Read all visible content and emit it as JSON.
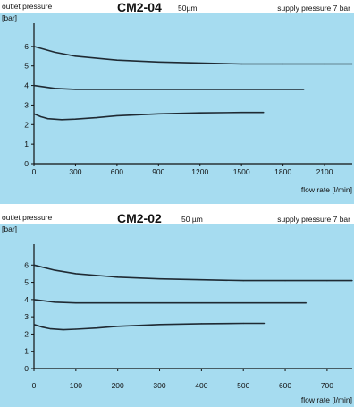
{
  "chart_data": [
    {
      "type": "line",
      "title": "CM2-04",
      "subtitle": "50µm",
      "ylabel": "outlet pressure",
      "yunit": "[bar]",
      "supply_text": "supply pressure 7 bar",
      "xlabel": "flow rate [l/min]",
      "x_ticks": [
        "0",
        "300",
        "600",
        "900",
        "1200",
        "1500",
        "1800",
        "2100"
      ],
      "y_ticks": [
        "0",
        "1",
        "2",
        "3",
        "4",
        "5",
        "6"
      ],
      "xlim": [
        0,
        2300
      ],
      "ylim": [
        0,
        7
      ],
      "grid": false,
      "background": "#a6dcf0",
      "line_color": "#1f2a33",
      "series": [
        {
          "x": [
            0,
            150,
            300,
            600,
            900,
            1200,
            1500,
            1800,
            2100,
            2300
          ],
          "y": [
            6.0,
            5.7,
            5.5,
            5.3,
            5.2,
            5.15,
            5.1,
            5.1,
            5.1,
            5.1
          ]
        },
        {
          "x": [
            0,
            150,
            300,
            600,
            900,
            1200,
            1500,
            1800,
            1950
          ],
          "y": [
            4.0,
            3.85,
            3.8,
            3.8,
            3.8,
            3.8,
            3.8,
            3.8,
            3.8
          ]
        },
        {
          "x": [
            0,
            50,
            100,
            200,
            300,
            450,
            600,
            900,
            1200,
            1500,
            1660
          ],
          "y": [
            2.55,
            2.4,
            2.3,
            2.25,
            2.28,
            2.35,
            2.45,
            2.55,
            2.6,
            2.62,
            2.62
          ]
        }
      ]
    },
    {
      "type": "line",
      "title": "CM2-02",
      "subtitle": "50 µm",
      "ylabel": "outlet pressure",
      "yunit": "[bar]",
      "supply_text": "supply pressure 7 bar",
      "xlabel": "flow rate [l/min]",
      "x_ticks": [
        "0",
        "100",
        "200",
        "300",
        "400",
        "500",
        "600",
        "700"
      ],
      "y_ticks": [
        "0",
        "1",
        "2",
        "3",
        "4",
        "5",
        "6"
      ],
      "xlim": [
        0,
        760
      ],
      "ylim": [
        0,
        7
      ],
      "grid": false,
      "background": "#a6dcf0",
      "line_color": "#1f2a33",
      "series": [
        {
          "x": [
            0,
            50,
            100,
            200,
            300,
            400,
            500,
            600,
            700,
            760
          ],
          "y": [
            6.0,
            5.7,
            5.5,
            5.3,
            5.2,
            5.15,
            5.1,
            5.1,
            5.1,
            5.1
          ]
        },
        {
          "x": [
            0,
            50,
            100,
            200,
            300,
            400,
            500,
            600,
            650
          ],
          "y": [
            4.0,
            3.85,
            3.8,
            3.8,
            3.8,
            3.8,
            3.8,
            3.8,
            3.8
          ]
        },
        {
          "x": [
            0,
            20,
            40,
            70,
            100,
            150,
            200,
            300,
            400,
            500,
            550
          ],
          "y": [
            2.55,
            2.4,
            2.3,
            2.25,
            2.28,
            2.35,
            2.45,
            2.55,
            2.6,
            2.62,
            2.62
          ]
        }
      ]
    }
  ]
}
